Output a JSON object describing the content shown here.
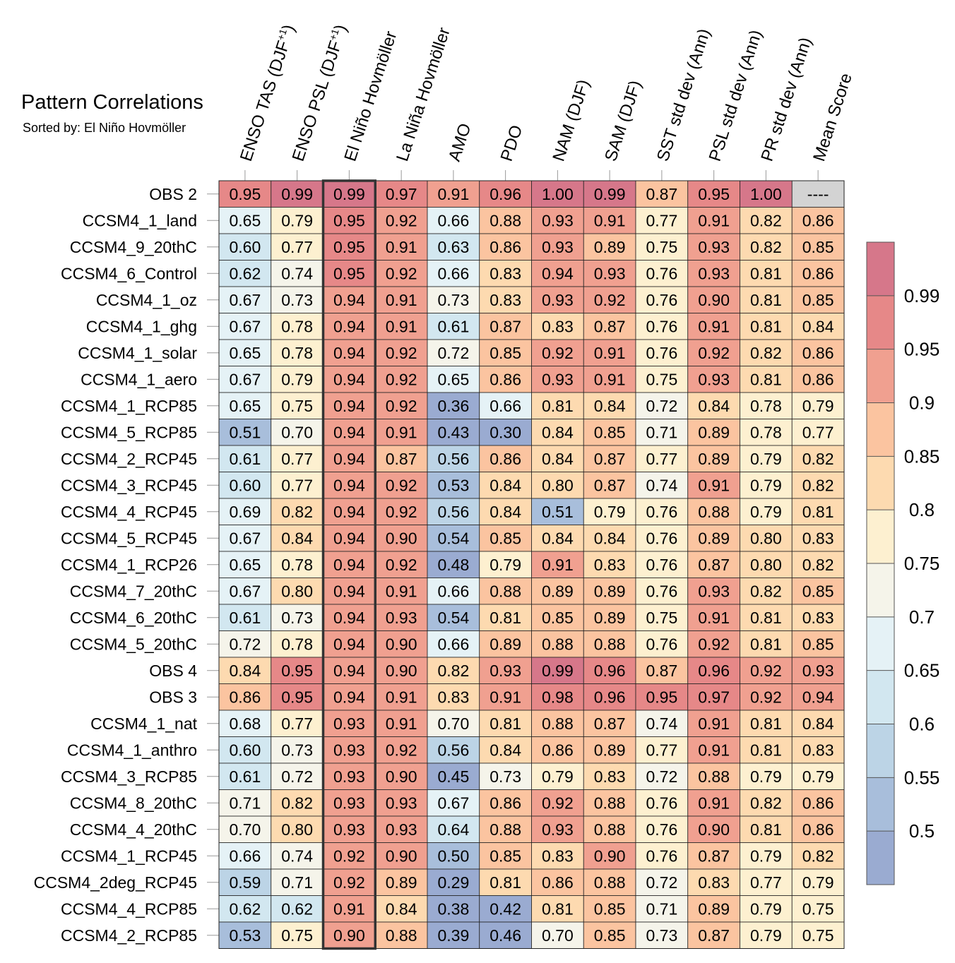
{
  "chart_data": {
    "type": "heatmap",
    "title": "Pattern Correlations",
    "subtitle": "Sorted by: El Niño Hovmöller",
    "columns": [
      {
        "main": "ENSO TAS (DJF",
        "sup": "+1",
        "tail": ")"
      },
      {
        "main": "ENSO PSL (DJF",
        "sup": "+1",
        "tail": ")"
      },
      {
        "main": "El Niño Hovmöller",
        "sup": "",
        "tail": ""
      },
      {
        "main": "La Niña Hovmöller",
        "sup": "",
        "tail": ""
      },
      {
        "main": "AMO",
        "sup": "",
        "tail": ""
      },
      {
        "main": "PDO",
        "sup": "",
        "tail": ""
      },
      {
        "main": "NAM (DJF)",
        "sup": "",
        "tail": ""
      },
      {
        "main": "SAM (DJF)",
        "sup": "",
        "tail": ""
      },
      {
        "main": "SST std dev (Ann)",
        "sup": "",
        "tail": ""
      },
      {
        "main": "PSL std dev (Ann)",
        "sup": "",
        "tail": ""
      },
      {
        "main": "PR std dev (Ann)",
        "sup": "",
        "tail": ""
      },
      {
        "main": "Mean Score",
        "sup": "",
        "tail": ""
      }
    ],
    "highlighted_column": 2,
    "missing_text": "----",
    "rows": [
      {
        "label": "OBS 2",
        "values": [
          "0.95",
          "0.99",
          "0.99",
          "0.97",
          "0.91",
          "0.96",
          "1.00",
          "0.99",
          "0.87",
          "0.95",
          "1.00",
          null
        ]
      },
      {
        "label": "CCSM4_1_land",
        "values": [
          "0.65",
          "0.79",
          "0.95",
          "0.92",
          "0.66",
          "0.88",
          "0.93",
          "0.91",
          "0.77",
          "0.91",
          "0.82",
          "0.86"
        ]
      },
      {
        "label": "CCSM4_9_20thC",
        "values": [
          "0.60",
          "0.77",
          "0.95",
          "0.91",
          "0.63",
          "0.86",
          "0.93",
          "0.89",
          "0.75",
          "0.93",
          "0.82",
          "0.85"
        ]
      },
      {
        "label": "CCSM4_6_Control",
        "values": [
          "0.62",
          "0.74",
          "0.95",
          "0.92",
          "0.66",
          "0.83",
          "0.94",
          "0.93",
          "0.76",
          "0.93",
          "0.81",
          "0.86"
        ]
      },
      {
        "label": "CCSM4_1_oz",
        "values": [
          "0.67",
          "0.73",
          "0.94",
          "0.91",
          "0.73",
          "0.83",
          "0.93",
          "0.92",
          "0.76",
          "0.90",
          "0.81",
          "0.85"
        ]
      },
      {
        "label": "CCSM4_1_ghg",
        "values": [
          "0.67",
          "0.78",
          "0.94",
          "0.91",
          "0.61",
          "0.87",
          "0.83",
          "0.87",
          "0.76",
          "0.91",
          "0.81",
          "0.84"
        ]
      },
      {
        "label": "CCSM4_1_solar",
        "values": [
          "0.65",
          "0.78",
          "0.94",
          "0.92",
          "0.72",
          "0.85",
          "0.92",
          "0.91",
          "0.76",
          "0.92",
          "0.82",
          "0.86"
        ]
      },
      {
        "label": "CCSM4_1_aero",
        "values": [
          "0.67",
          "0.79",
          "0.94",
          "0.92",
          "0.65",
          "0.86",
          "0.93",
          "0.91",
          "0.75",
          "0.93",
          "0.81",
          "0.86"
        ]
      },
      {
        "label": "CCSM4_1_RCP85",
        "values": [
          "0.65",
          "0.75",
          "0.94",
          "0.92",
          "0.36",
          "0.66",
          "0.81",
          "0.84",
          "0.72",
          "0.84",
          "0.78",
          "0.79"
        ]
      },
      {
        "label": "CCSM4_5_RCP85",
        "values": [
          "0.51",
          "0.70",
          "0.94",
          "0.91",
          "0.43",
          "0.30",
          "0.84",
          "0.85",
          "0.71",
          "0.89",
          "0.78",
          "0.77"
        ]
      },
      {
        "label": "CCSM4_2_RCP45",
        "values": [
          "0.61",
          "0.77",
          "0.94",
          "0.87",
          "0.56",
          "0.86",
          "0.84",
          "0.87",
          "0.77",
          "0.89",
          "0.79",
          "0.82"
        ]
      },
      {
        "label": "CCSM4_3_RCP45",
        "values": [
          "0.60",
          "0.77",
          "0.94",
          "0.92",
          "0.53",
          "0.84",
          "0.80",
          "0.87",
          "0.74",
          "0.91",
          "0.79",
          "0.82"
        ]
      },
      {
        "label": "CCSM4_4_RCP45",
        "values": [
          "0.69",
          "0.82",
          "0.94",
          "0.92",
          "0.56",
          "0.84",
          "0.51",
          "0.79",
          "0.76",
          "0.88",
          "0.79",
          "0.81"
        ]
      },
      {
        "label": "CCSM4_5_RCP45",
        "values": [
          "0.67",
          "0.84",
          "0.94",
          "0.90",
          "0.54",
          "0.85",
          "0.84",
          "0.84",
          "0.76",
          "0.89",
          "0.80",
          "0.83"
        ]
      },
      {
        "label": "CCSM4_1_RCP26",
        "values": [
          "0.65",
          "0.78",
          "0.94",
          "0.92",
          "0.48",
          "0.79",
          "0.91",
          "0.83",
          "0.76",
          "0.87",
          "0.80",
          "0.82"
        ]
      },
      {
        "label": "CCSM4_7_20thC",
        "values": [
          "0.67",
          "0.80",
          "0.94",
          "0.91",
          "0.66",
          "0.88",
          "0.89",
          "0.89",
          "0.76",
          "0.93",
          "0.82",
          "0.85"
        ]
      },
      {
        "label": "CCSM4_6_20thC",
        "values": [
          "0.61",
          "0.73",
          "0.94",
          "0.93",
          "0.54",
          "0.81",
          "0.85",
          "0.89",
          "0.75",
          "0.91",
          "0.81",
          "0.83"
        ]
      },
      {
        "label": "CCSM4_5_20thC",
        "values": [
          "0.72",
          "0.78",
          "0.94",
          "0.90",
          "0.66",
          "0.89",
          "0.88",
          "0.88",
          "0.76",
          "0.92",
          "0.81",
          "0.85"
        ]
      },
      {
        "label": "OBS 4",
        "values": [
          "0.84",
          "0.95",
          "0.94",
          "0.90",
          "0.82",
          "0.93",
          "0.99",
          "0.96",
          "0.87",
          "0.96",
          "0.92",
          "0.93"
        ]
      },
      {
        "label": "OBS 3",
        "values": [
          "0.86",
          "0.95",
          "0.94",
          "0.91",
          "0.83",
          "0.91",
          "0.98",
          "0.96",
          "0.95",
          "0.97",
          "0.92",
          "0.94"
        ]
      },
      {
        "label": "CCSM4_1_nat",
        "values": [
          "0.68",
          "0.77",
          "0.93",
          "0.91",
          "0.70",
          "0.81",
          "0.88",
          "0.87",
          "0.74",
          "0.91",
          "0.81",
          "0.84"
        ]
      },
      {
        "label": "CCSM4_1_anthro",
        "values": [
          "0.60",
          "0.73",
          "0.93",
          "0.92",
          "0.56",
          "0.84",
          "0.86",
          "0.89",
          "0.77",
          "0.91",
          "0.81",
          "0.83"
        ]
      },
      {
        "label": "CCSM4_3_RCP85",
        "values": [
          "0.61",
          "0.72",
          "0.93",
          "0.90",
          "0.45",
          "0.73",
          "0.79",
          "0.83",
          "0.72",
          "0.88",
          "0.79",
          "0.79"
        ]
      },
      {
        "label": "CCSM4_8_20thC",
        "values": [
          "0.71",
          "0.82",
          "0.93",
          "0.93",
          "0.67",
          "0.86",
          "0.92",
          "0.88",
          "0.76",
          "0.91",
          "0.82",
          "0.86"
        ]
      },
      {
        "label": "CCSM4_4_20thC",
        "values": [
          "0.70",
          "0.80",
          "0.93",
          "0.93",
          "0.64",
          "0.88",
          "0.93",
          "0.88",
          "0.76",
          "0.90",
          "0.81",
          "0.86"
        ]
      },
      {
        "label": "CCSM4_1_RCP45",
        "values": [
          "0.66",
          "0.74",
          "0.92",
          "0.90",
          "0.50",
          "0.85",
          "0.83",
          "0.90",
          "0.76",
          "0.87",
          "0.79",
          "0.82"
        ]
      },
      {
        "label": "CCSM4_2deg_RCP45",
        "values": [
          "0.59",
          "0.71",
          "0.92",
          "0.89",
          "0.29",
          "0.81",
          "0.86",
          "0.88",
          "0.72",
          "0.83",
          "0.77",
          "0.79"
        ]
      },
      {
        "label": "CCSM4_4_RCP85",
        "values": [
          "0.62",
          "0.62",
          "0.91",
          "0.84",
          "0.38",
          "0.42",
          "0.81",
          "0.85",
          "0.71",
          "0.89",
          "0.79",
          "0.75"
        ]
      },
      {
        "label": "CCSM4_2_RCP85",
        "values": [
          "0.53",
          "0.75",
          "0.90",
          "0.88",
          "0.39",
          "0.46",
          "0.70",
          "0.85",
          "0.73",
          "0.87",
          "0.79",
          "0.75"
        ]
      }
    ],
    "colorbar": {
      "levels": [
        0.5,
        0.55,
        0.6,
        0.65,
        0.7,
        0.75,
        0.8,
        0.85,
        0.9,
        0.95,
        0.99
      ],
      "labels": [
        "0.5",
        "0.55",
        "0.6",
        "0.65",
        "0.7",
        "0.75",
        "0.8",
        "0.85",
        "0.9",
        "0.95",
        "0.99"
      ],
      "colors": [
        "#9aabd1",
        "#a8bedb",
        "#bcd4e6",
        "#d2e7f0",
        "#e5f2f6",
        "#f5f4ea",
        "#fdf0d0",
        "#fddab0",
        "#fbc4a0",
        "#f0a090",
        "#e68888",
        "#d6778a"
      ]
    },
    "missing_color": "#d3d3d3",
    "highlight_color": "#333333"
  }
}
